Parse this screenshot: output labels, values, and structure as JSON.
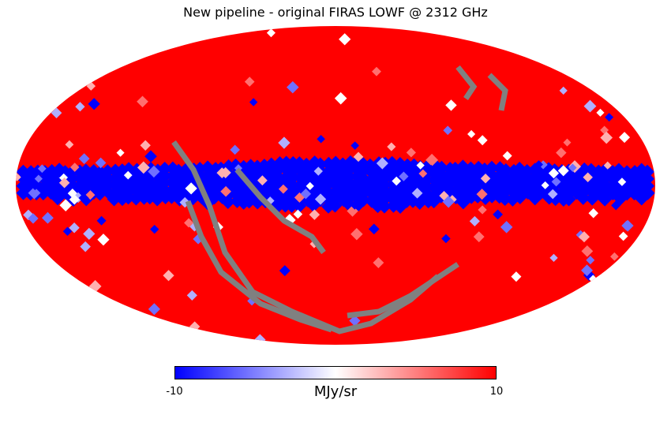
{
  "figure": {
    "title": "New pipeline - original FIRAS LOWF @ 2312 GHz"
  },
  "map": {
    "projection": "mollweide",
    "colormap": [
      "#0000ff",
      "#ffffff",
      "#ff0000"
    ],
    "bad_pixel_color": "#808080"
  },
  "colorbar": {
    "min_label": "-10",
    "max_label": "10",
    "min": -10,
    "max": 10,
    "unit": "MJy/sr"
  }
}
